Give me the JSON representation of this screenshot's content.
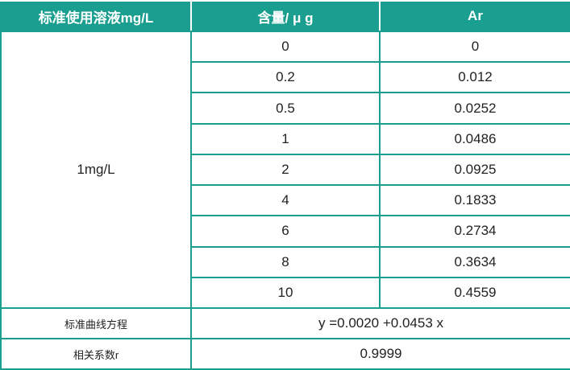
{
  "table": {
    "header": [
      "标准使用溶液mg/L",
      "含量/ μ g",
      "Ar"
    ],
    "solution": "1mg/L",
    "rows": [
      [
        "0",
        "0"
      ],
      [
        "0.2",
        "0.012"
      ],
      [
        "0.5",
        "0.0252"
      ],
      [
        "1",
        "0.0486"
      ],
      [
        "2",
        "0.0925"
      ],
      [
        "4",
        "0.1833"
      ],
      [
        "6",
        "0.2734"
      ],
      [
        "8",
        "0.3634"
      ],
      [
        "10",
        "0.4559"
      ]
    ],
    "equation_label": "标准曲线方程",
    "equation": "y =0.0020 +0.0453 x",
    "correlation_label": "相关系数r",
    "correlation": "0.9999"
  }
}
